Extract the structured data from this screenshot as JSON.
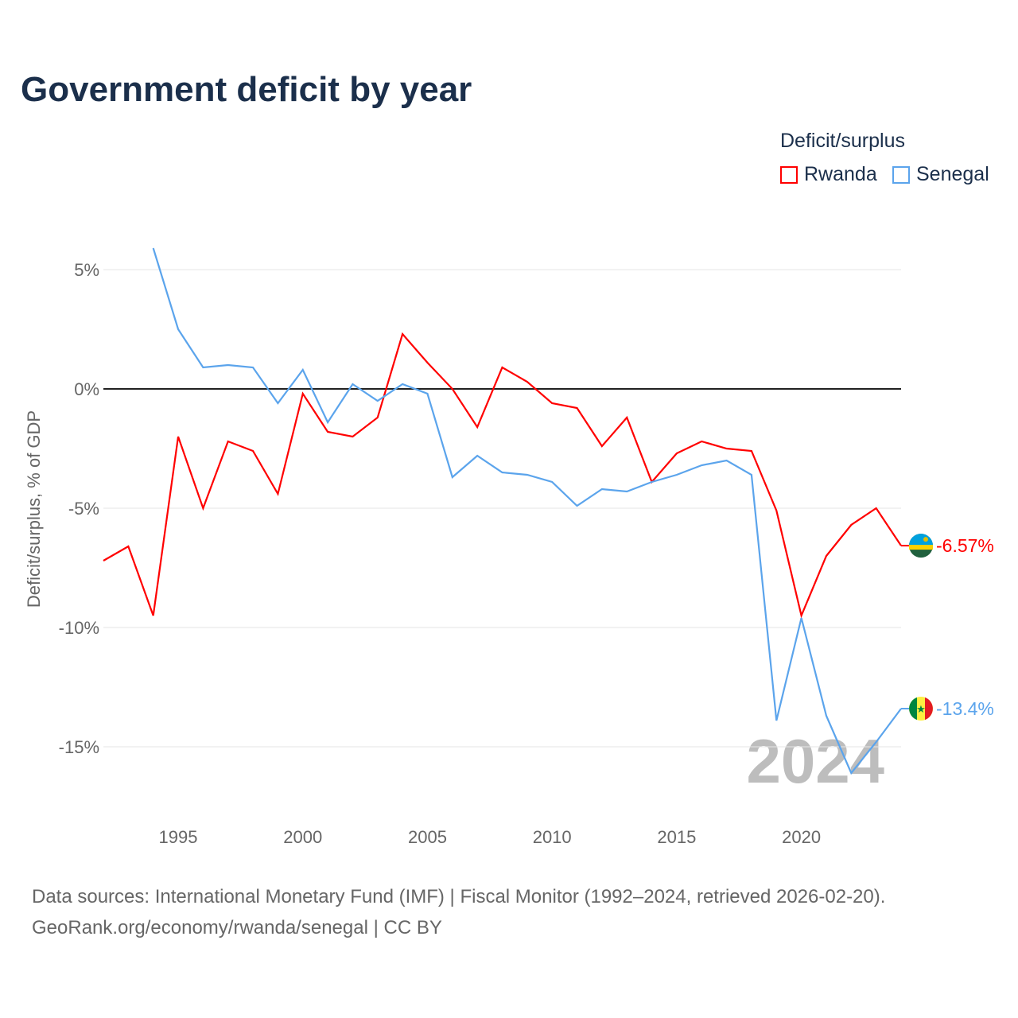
{
  "chart_data": {
    "type": "line",
    "title": "Government deficit by year",
    "ylabel": "Deficit/surplus, % of GDP",
    "xlabel": "",
    "xlim": [
      1992,
      2024
    ],
    "ylim": [
      -17.5,
      7
    ],
    "x_ticks": [
      1995,
      2000,
      2005,
      2010,
      2015,
      2020
    ],
    "y_ticks": [
      5,
      0,
      -5,
      -10,
      -15
    ],
    "y_tick_labels": [
      "5%",
      "0%",
      "-5%",
      "-10%",
      "-15%"
    ],
    "legend_title": "Deficit/surplus",
    "legend_position": "top-right",
    "watermark_year": "2024",
    "series": [
      {
        "name": "Rwanda",
        "color": "#ff0000",
        "end_label": "-6.57%",
        "x": [
          1992,
          1993,
          1994,
          1995,
          1996,
          1997,
          1998,
          1999,
          2000,
          2001,
          2002,
          2003,
          2004,
          2005,
          2006,
          2007,
          2008,
          2009,
          2010,
          2011,
          2012,
          2013,
          2014,
          2015,
          2016,
          2017,
          2018,
          2019,
          2020,
          2021,
          2022,
          2023,
          2024
        ],
        "values": [
          -7.2,
          -6.6,
          -9.5,
          -2.0,
          -5.0,
          -2.2,
          -2.6,
          -4.4,
          -0.2,
          -1.8,
          -2.0,
          -1.2,
          2.3,
          1.1,
          0.0,
          -1.6,
          0.9,
          0.3,
          -0.6,
          -0.8,
          -2.4,
          -1.2,
          -3.9,
          -2.7,
          -2.2,
          -2.5,
          -2.6,
          -5.1,
          -9.5,
          -7.0,
          -5.7,
          -5.0,
          -6.57
        ]
      },
      {
        "name": "Senegal",
        "color": "#5ba4ec",
        "end_label": "-13.4%",
        "x": [
          1994,
          1995,
          1996,
          1997,
          1998,
          1999,
          2000,
          2001,
          2002,
          2003,
          2004,
          2005,
          2006,
          2007,
          2008,
          2009,
          2010,
          2011,
          2012,
          2013,
          2014,
          2015,
          2016,
          2017,
          2018,
          2019,
          2020,
          2021,
          2022,
          2023,
          2024
        ],
        "values": [
          5.9,
          2.5,
          0.9,
          1.0,
          0.9,
          -0.6,
          0.8,
          -1.4,
          0.2,
          -0.5,
          0.2,
          -0.2,
          -3.7,
          -2.8,
          -3.5,
          -3.6,
          -3.9,
          -4.9,
          -4.2,
          -4.3,
          -3.9,
          -3.6,
          -3.2,
          -3.0,
          -3.6,
          -13.9,
          -9.6,
          -13.7,
          -16.1,
          -14.8,
          -13.4
        ]
      }
    ]
  },
  "footer": {
    "line1": "Data sources: International Monetary Fund (IMF) | Fiscal Monitor (1992–2024, retrieved 2026-02-20).",
    "line2": "GeoRank.org/economy/rwanda/senegal | CC BY"
  }
}
